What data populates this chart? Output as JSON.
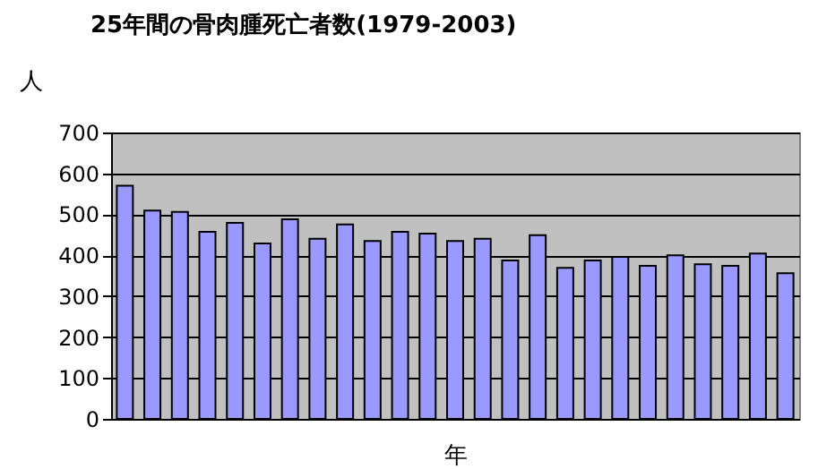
{
  "chart_data": {
    "type": "bar",
    "title": "25年間の骨肉腫死亡者数(1979-2003)",
    "xlabel": "年",
    "ylabel": "人",
    "categories": [
      null,
      null,
      null,
      null,
      null,
      null,
      null,
      null,
      null,
      null,
      null,
      null,
      null,
      null,
      null,
      null,
      null,
      null,
      null,
      null,
      null,
      null,
      null,
      null,
      null
    ],
    "values": [
      570,
      509,
      506,
      457,
      479,
      429,
      488,
      440,
      475,
      435,
      457,
      453,
      435,
      440,
      387,
      449,
      369,
      387,
      396,
      374,
      400,
      378,
      374,
      404,
      356
    ],
    "color": "#9999ff",
    "ylim": [
      0,
      700
    ],
    "yticks": [
      0,
      100,
      200,
      300,
      400,
      500,
      600,
      700
    ],
    "grid": "y",
    "tick_labels": "y"
  }
}
